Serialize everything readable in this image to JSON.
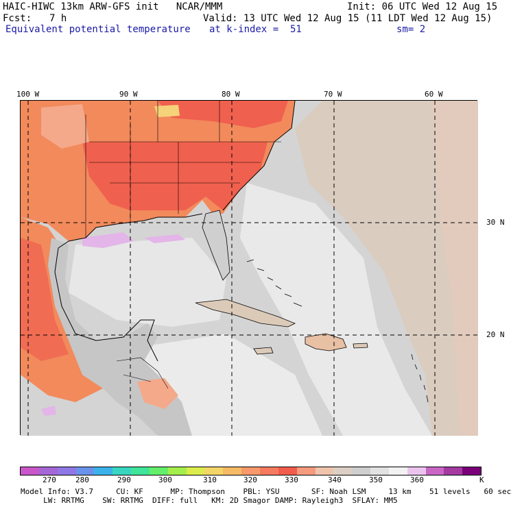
{
  "header": {
    "model_line": "HAIC-HIWC 13km ARW-GFS init   NCAR/MMM",
    "init": "Init: 06 UTC Wed 12 Aug 15",
    "fcst_label": "Fcst:",
    "fcst_value": "7 h",
    "valid": "Valid: 13 UTC Wed 12 Aug 15 (11 LDT Wed 12 Aug 15)",
    "field": "Equivalent potential temperature",
    "level": "at k-index =  51",
    "smoothing": "sm= 2"
  },
  "map": {
    "lon_labels": [
      "100 W",
      "90 W",
      "80 W",
      "70 W",
      "60 W"
    ],
    "lat_labels": [
      "30 N",
      "20 N"
    ],
    "colors": {
      "warm_orange": "#f28a5c",
      "red": "#f0604e",
      "salmon": "#f4a98a",
      "tan": "#dccab8",
      "light_gray": "#cfcfcf",
      "pale_gray": "#e6e6e6",
      "lavender": "#e3b5e8",
      "yellow": "#f6d27a"
    }
  },
  "colorbar": {
    "colors": [
      "#c957c9",
      "#a566d6",
      "#8f78e6",
      "#6a92ec",
      "#3cb2ea",
      "#38d6c0",
      "#40e49a",
      "#64ee6a",
      "#a4ee4c",
      "#dcec4c",
      "#f4d668",
      "#f6ba64",
      "#f7996a",
      "#f57a5e",
      "#f25c4c",
      "#f69a7e",
      "#efc4ac",
      "#dcd0c4",
      "#cfcfcf",
      "#e2e2e2",
      "#f2f2f2",
      "#ebc4ee",
      "#c966c4",
      "#a43aa0",
      "#7a007a"
    ],
    "ticks": [
      "270",
      "280",
      "290",
      "300",
      "310",
      "320",
      "330",
      "340",
      "350",
      "360"
    ],
    "unit": "K"
  },
  "footer": {
    "line1": "Model Info: V3.7     CU: KF      MP: Thompson    PBL: YSU       SF: Noah LSM     13 km    51 levels   60 sec",
    "line2": "     LW: RRTMG    SW: RRTMG  DIFF: full   KM: 2D Smagor DAMP: Rayleigh3  SFLAY: MM5"
  }
}
